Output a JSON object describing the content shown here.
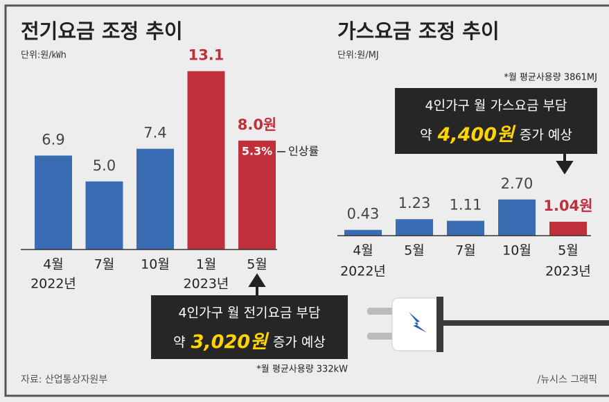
{
  "chart_data": [
    {
      "type": "bar",
      "title": "전기요금 조정 추이",
      "unit": "단위:원/㎾h",
      "categories": [
        "4월",
        "7월",
        "10월",
        "1월",
        "5월"
      ],
      "year_labels": [
        "2022년",
        null,
        null,
        "2023년",
        null
      ],
      "values": [
        6.9,
        5.0,
        7.4,
        13.1,
        8.0
      ],
      "value_labels": [
        "6.9",
        "5.0",
        "7.4",
        "13.1",
        "8.0원"
      ],
      "colors": [
        "#3a6cb4",
        "#3a6cb4",
        "#3a6cb4",
        "#c1303a",
        "#c1303a"
      ],
      "value_label_colors": [
        "#444444",
        "#444444",
        "#444444",
        "#c1303a",
        "#c1303a"
      ],
      "ylim": [
        0,
        14
      ],
      "increase_rate_label": "5.3%",
      "increase_rate_name": "인상률",
      "callout": {
        "line1": "4인가구 월 전기요금 부담",
        "prefix": "약",
        "amount": "3,020원",
        "suffix": "증가 예상",
        "note": "*월 평균사용량 332kW"
      }
    },
    {
      "type": "bar",
      "title": "가스요금 조정 추이",
      "unit": "단위:원/MJ",
      "categories": [
        "4월",
        "5월",
        "7월",
        "10월",
        "5월"
      ],
      "year_labels": [
        "2022년",
        null,
        null,
        null,
        "2023년"
      ],
      "values": [
        0.43,
        1.23,
        1.11,
        2.7,
        1.04
      ],
      "value_labels": [
        "0.43",
        "1.23",
        "1.11",
        "2.70",
        "1.04원"
      ],
      "colors": [
        "#3a6cb4",
        "#3a6cb4",
        "#3a6cb4",
        "#3a6cb4",
        "#c1303a"
      ],
      "value_label_colors": [
        "#444444",
        "#444444",
        "#444444",
        "#444444",
        "#c1303a"
      ],
      "ylim": [
        0,
        3
      ],
      "callout": {
        "line1": "4인가구 월 가스요금 부담",
        "prefix": "약",
        "amount": "4,400원",
        "suffix": "증가 예상",
        "note": "*월 평균사용량 3861MJ"
      }
    }
  ],
  "source": "자료: 산업통상자원부",
  "credit": "/뉴시스 그래픽"
}
